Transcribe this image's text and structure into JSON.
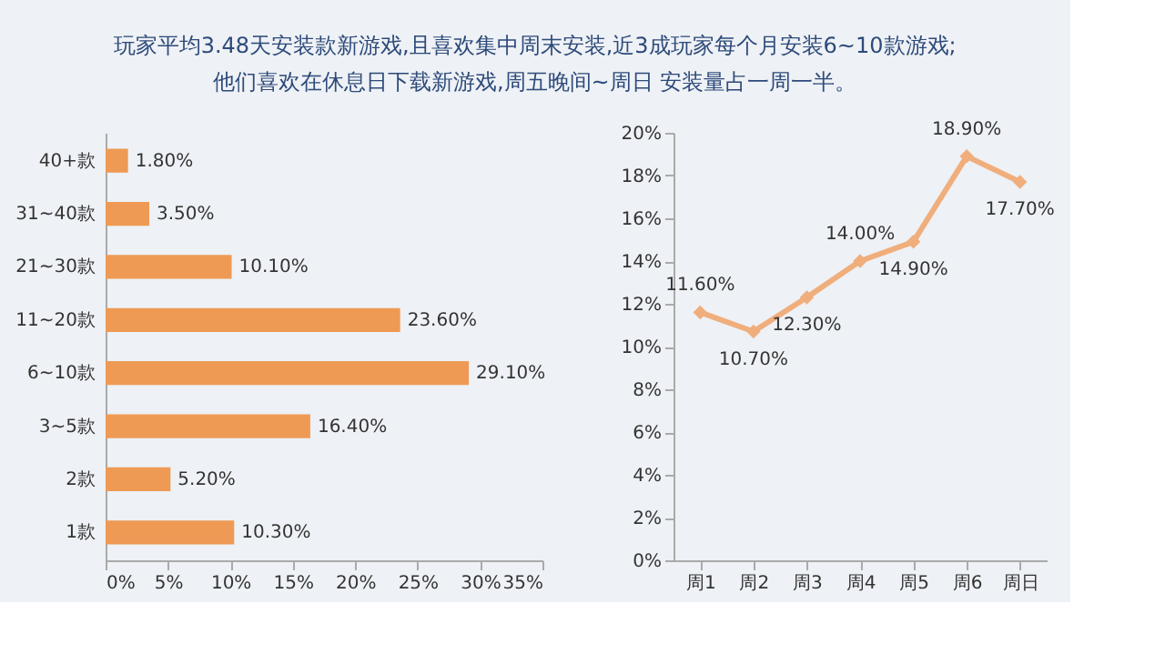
{
  "chart_data": [
    {
      "type": "bar",
      "orientation": "horizontal",
      "title": "玩家平均3.48天安装款新游戏,且喜欢集中周末安装,近3成玩家每个月安装6~10款游戏;",
      "subtitle": "他们喜欢在休息日下载新游戏,周五晚间~周日 安装量占一周一半。",
      "categories": [
        "40+款",
        "31~40款",
        "21~30款",
        "11~20款",
        "6~10款",
        "3~5款",
        "2款",
        "1款"
      ],
      "values": [
        1.8,
        3.5,
        10.1,
        23.6,
        29.1,
        16.4,
        5.2,
        10.3
      ],
      "value_labels": [
        "1.80%",
        "3.50%",
        "10.10%",
        "23.60%",
        "29.10%",
        "16.40%",
        "5.20%",
        "10.30%"
      ],
      "color": "#ee9a55",
      "xlim": [
        0,
        35
      ],
      "xticks": [
        {
          "value": 0,
          "label": "0%"
        },
        {
          "value": 5,
          "label": "5%"
        },
        {
          "value": 10,
          "label": "10%"
        },
        {
          "value": 15,
          "label": "15%"
        },
        {
          "value": 20,
          "label": "20%"
        },
        {
          "value": 25,
          "label": "25%"
        },
        {
          "value": 30,
          "label": "30%"
        },
        {
          "value": 35,
          "label": "35%"
        }
      ],
      "grid": false
    },
    {
      "type": "line",
      "categories": [
        "周1",
        "周2",
        "周3",
        "周4",
        "周5",
        "周6",
        "周日"
      ],
      "values": [
        11.6,
        10.7,
        12.3,
        14.0,
        14.9,
        18.9,
        17.7
      ],
      "value_labels": [
        "11.60%",
        "10.70%",
        "12.30%",
        "14.00%",
        "14.90%",
        "18.90%",
        "17.70%"
      ],
      "color": "#f0ae7c",
      "marker": "diamond",
      "line_style": "solid",
      "ylim": [
        0,
        20
      ],
      "yticks": [
        {
          "value": 0,
          "label": "0%"
        },
        {
          "value": 2,
          "label": "2%"
        },
        {
          "value": 4,
          "label": "4%"
        },
        {
          "value": 6,
          "label": "6%"
        },
        {
          "value": 8,
          "label": "8%"
        },
        {
          "value": 10,
          "label": "10%"
        },
        {
          "value": 12,
          "label": "12%"
        },
        {
          "value": 14,
          "label": "14%"
        },
        {
          "value": 16,
          "label": "16%"
        },
        {
          "value": 18,
          "label": "18%"
        },
        {
          "value": 20,
          "label": "20%"
        }
      ],
      "grid": false
    }
  ]
}
